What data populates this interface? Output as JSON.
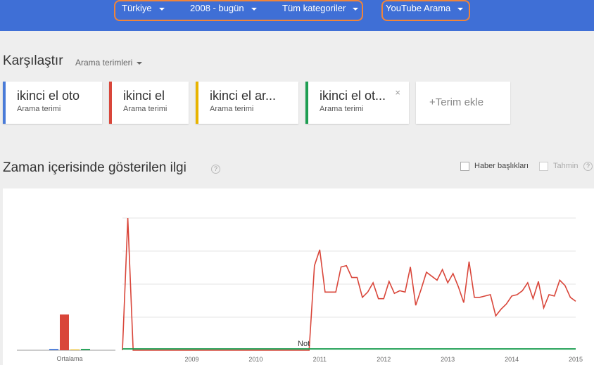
{
  "topbar": {
    "filters": {
      "region": "Türkiye",
      "period": "2008 - bugün",
      "category": "Tüm kategoriler",
      "search_type": "YouTube Arama"
    }
  },
  "compare": {
    "title": "Karşılaştır",
    "subtitle": "Arama terimleri",
    "terms": [
      {
        "name": "ikinci el oto",
        "type": "Arama terimi",
        "color": "#4a7bd8"
      },
      {
        "name": "ikinci el",
        "type": "Arama terimi",
        "color": "#d9463a"
      },
      {
        "name": "ikinci el ar...",
        "type": "Arama terimi",
        "color": "#e8b400"
      },
      {
        "name": "ikinci el ot...",
        "type": "Arama terimi",
        "color": "#1e9e52"
      }
    ],
    "close_icon": "×",
    "add_label": "+Terim ekle"
  },
  "interest": {
    "title": "Zaman içerisinde gösterilen ilgi",
    "help_icon": "?",
    "news_label": "Haber başlıkları",
    "forecast_label": "Tahmin"
  },
  "chart_data": {
    "type": "line",
    "averages_label": "Ortalama",
    "annotation": "Not",
    "x_ticks": [
      "2009",
      "2010",
      "2011",
      "2012",
      "2013",
      "2014",
      "2015"
    ],
    "ylim": [
      0,
      100
    ],
    "grid": true,
    "averages": [
      {
        "series": "ikinci el oto",
        "value": 1
      },
      {
        "series": "ikinci el",
        "value": 27
      },
      {
        "series": "ikinci el ar...",
        "value": 0
      },
      {
        "series": "ikinci el ot...",
        "value": 1
      }
    ],
    "series": [
      {
        "name": "ikinci el",
        "color": "#d9463a",
        "points": [
          [
            "2008-06",
            0
          ],
          [
            "2008-07",
            100
          ],
          [
            "2008-08",
            0
          ],
          [
            "2011-05",
            0
          ],
          [
            "2011-06",
            64
          ],
          [
            "2011-07",
            76
          ],
          [
            "2011-08",
            44
          ],
          [
            "2011-09",
            44
          ],
          [
            "2011-10",
            44
          ],
          [
            "2011-11",
            63
          ],
          [
            "2011-12",
            64
          ],
          [
            "2012-01",
            55
          ],
          [
            "2012-02",
            55
          ],
          [
            "2012-03",
            40
          ],
          [
            "2012-04",
            44
          ],
          [
            "2012-05",
            51
          ],
          [
            "2012-06",
            39
          ],
          [
            "2012-07",
            39
          ],
          [
            "2012-08",
            52
          ],
          [
            "2012-09",
            43
          ],
          [
            "2012-10",
            45
          ],
          [
            "2012-11",
            44
          ],
          [
            "2012-12",
            63
          ],
          [
            "2013-01",
            34
          ],
          [
            "2013-02",
            46
          ],
          [
            "2013-03",
            59
          ],
          [
            "2013-04",
            56
          ],
          [
            "2013-05",
            53
          ],
          [
            "2013-06",
            61
          ],
          [
            "2013-07",
            51
          ],
          [
            "2013-08",
            58
          ],
          [
            "2013-09",
            48
          ],
          [
            "2013-10",
            36
          ],
          [
            "2013-11",
            67
          ],
          [
            "2013-12",
            40
          ],
          [
            "2014-01",
            40
          ],
          [
            "2014-02",
            41
          ],
          [
            "2014-03",
            42
          ],
          [
            "2014-04",
            26
          ],
          [
            "2014-05",
            31
          ],
          [
            "2014-06",
            35
          ],
          [
            "2014-07",
            41
          ],
          [
            "2014-08",
            42
          ],
          [
            "2014-09",
            45
          ],
          [
            "2014-10",
            51
          ],
          [
            "2014-11",
            39
          ],
          [
            "2014-12",
            52
          ],
          [
            "2015-01",
            32
          ],
          [
            "2015-02",
            42
          ],
          [
            "2015-03",
            41
          ],
          [
            "2015-04",
            53
          ],
          [
            "2015-05",
            49
          ],
          [
            "2015-06",
            40
          ],
          [
            "2015-07",
            37
          ]
        ]
      },
      {
        "name": "ikinci el ot...",
        "color": "#1e9e52",
        "points": [
          [
            "2008-06",
            1
          ],
          [
            "2015-07",
            1
          ]
        ]
      }
    ]
  }
}
